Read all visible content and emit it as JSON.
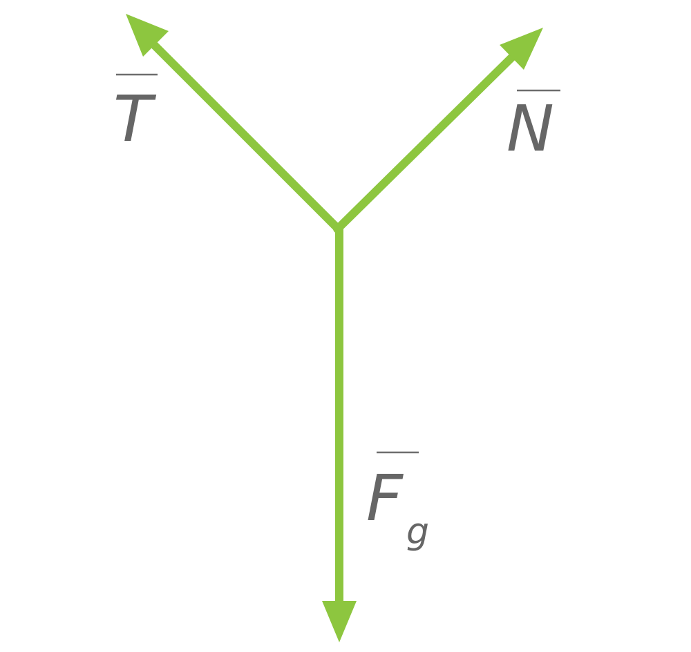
{
  "labels": {
    "tension": "T",
    "normal": "N",
    "gravity": "F",
    "gravity_subscript": "g"
  },
  "colors": {
    "vector": "#8dc63f",
    "label": "#666666"
  }
}
